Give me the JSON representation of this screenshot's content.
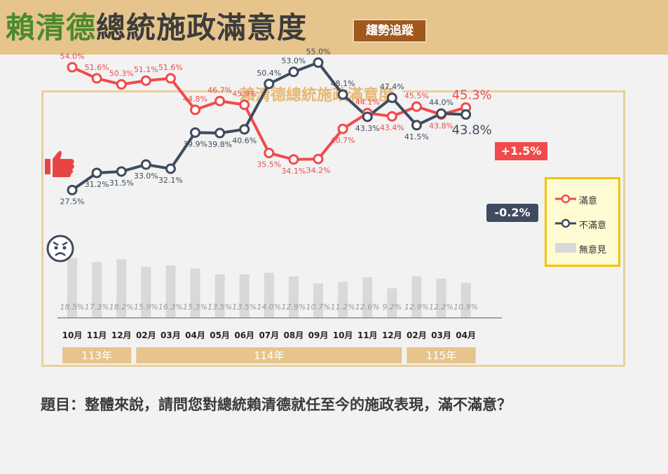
{
  "header": {
    "title_name": "賴清德",
    "title_rest": "總統施政滿意度",
    "badge": "趨勢追蹤"
  },
  "frame_title": "賴清德總統施政滿意度",
  "question": "題目：整體來說，請問您對總統賴清德就任至今的施政表現，滿不滿意？",
  "legend": {
    "satisfied": "滿意",
    "dissatisfied": "不滿意",
    "no_opinion": "無意見"
  },
  "change": {
    "satisfied": "+1.5%",
    "dissatisfied": "-0.2%"
  },
  "colors": {
    "satisfied": "#ef4b4b",
    "dissatisfied": "#3f4b5e",
    "no_opinion": "#d9d9d9",
    "year_band": "#e6c48c"
  },
  "chart_data": {
    "type": "line",
    "categories": [
      "10月",
      "11月",
      "12月",
      "02月",
      "03月",
      "04月",
      "05月",
      "06月",
      "07月",
      "08月",
      "09月",
      "10月",
      "11月",
      "12月",
      "02月",
      "03月",
      "04月"
    ],
    "year_groups": [
      {
        "label": "113年",
        "span": [
          0,
          2
        ]
      },
      {
        "label": "114年",
        "span": [
          3,
          13
        ]
      },
      {
        "label": "115年",
        "span": [
          14,
          16
        ]
      }
    ],
    "series": [
      {
        "name": "滿意",
        "values": [
          54.0,
          51.6,
          50.3,
          51.1,
          51.6,
          44.8,
          46.7,
          45.9,
          35.5,
          34.1,
          34.2,
          40.7,
          44.1,
          43.4,
          45.5,
          43.8,
          45.3
        ]
      },
      {
        "name": "不滿意",
        "values": [
          27.5,
          31.2,
          31.5,
          33.0,
          32.1,
          39.9,
          39.8,
          40.6,
          50.4,
          53.0,
          55.0,
          48.1,
          43.3,
          47.4,
          41.5,
          44.0,
          43.8
        ]
      },
      {
        "name": "無意見",
        "type": "bar",
        "values": [
          18.5,
          17.3,
          18.2,
          15.9,
          16.3,
          15.3,
          13.5,
          13.5,
          14.0,
          12.9,
          10.7,
          11.2,
          12.6,
          9.2,
          12.9,
          12.2,
          10.9
        ]
      }
    ]
  }
}
